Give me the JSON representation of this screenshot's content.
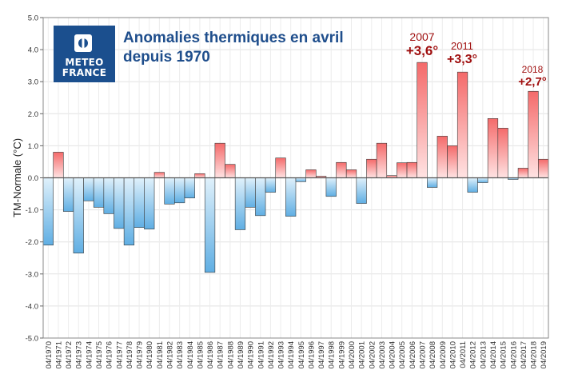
{
  "chart_data": {
    "type": "bar",
    "title": "Anomalies thermiques en avril depuis 1970",
    "ylabel": "TM-Normale (°C)",
    "xlabel": "",
    "ylim": [
      -5.0,
      5.0
    ],
    "yticks": [
      "-5.0",
      "-4.0",
      "-3.0",
      "-2.0",
      "-1.0",
      "0.0",
      "1.0",
      "2.0",
      "3.0",
      "4.0",
      "5.0"
    ],
    "grid": true,
    "categories": [
      "04/1970",
      "04/1971",
      "04/1972",
      "04/1973",
      "04/1974",
      "04/1975",
      "04/1976",
      "04/1977",
      "04/1978",
      "04/1979",
      "04/1980",
      "04/1981",
      "04/1982",
      "04/1983",
      "04/1984",
      "04/1985",
      "04/1986",
      "04/1987",
      "04/1988",
      "04/1989",
      "04/1990",
      "04/1991",
      "04/1992",
      "04/1993",
      "04/1994",
      "04/1995",
      "04/1996",
      "04/1997",
      "04/1998",
      "04/1999",
      "04/2000",
      "04/2001",
      "04/2002",
      "04/2003",
      "04/2004",
      "04/2005",
      "04/2006",
      "04/2007",
      "04/2008",
      "04/2009",
      "04/2010",
      "04/2011",
      "04/2012",
      "04/2013",
      "04/2014",
      "04/2015",
      "04/2016",
      "04/2017",
      "04/2018",
      "04/2019"
    ],
    "values": [
      -2.1,
      0.8,
      -1.05,
      -2.35,
      -0.72,
      -0.92,
      -1.12,
      -1.58,
      -2.1,
      -1.55,
      -1.6,
      0.17,
      -0.82,
      -0.78,
      -0.63,
      0.13,
      -2.95,
      1.08,
      0.42,
      -1.62,
      -0.92,
      -1.18,
      -0.45,
      0.62,
      -1.2,
      -0.12,
      0.25,
      0.05,
      -0.58,
      0.48,
      0.25,
      -0.8,
      0.58,
      1.08,
      0.07,
      0.47,
      0.48,
      3.6,
      -0.3,
      1.3,
      1.0,
      3.3,
      -0.45,
      -0.15,
      1.85,
      1.55,
      -0.05,
      0.3,
      2.7,
      0.58
    ],
    "annotations": [
      {
        "year": "2007",
        "value": "+3,6°"
      },
      {
        "year": "2011",
        "value": "+3,3°"
      },
      {
        "year": "2018",
        "value": "+2,7°"
      }
    ],
    "colors": {
      "pos_top": "#f46a6a",
      "pos_bottom": "#ffe3e3",
      "neg_top": "#e0f1fb",
      "neg_bottom": "#5faee3",
      "annotation": "#a01010",
      "title": "#1f4e8c",
      "brand": "#1b4f8e"
    }
  },
  "title_lines": [
    "Anomalies thermiques en avril",
    "depuis 1970"
  ],
  "logo": {
    "line1": "METEO",
    "line2": "FRANCE",
    "icon": "meteo-france-logo-icon"
  }
}
